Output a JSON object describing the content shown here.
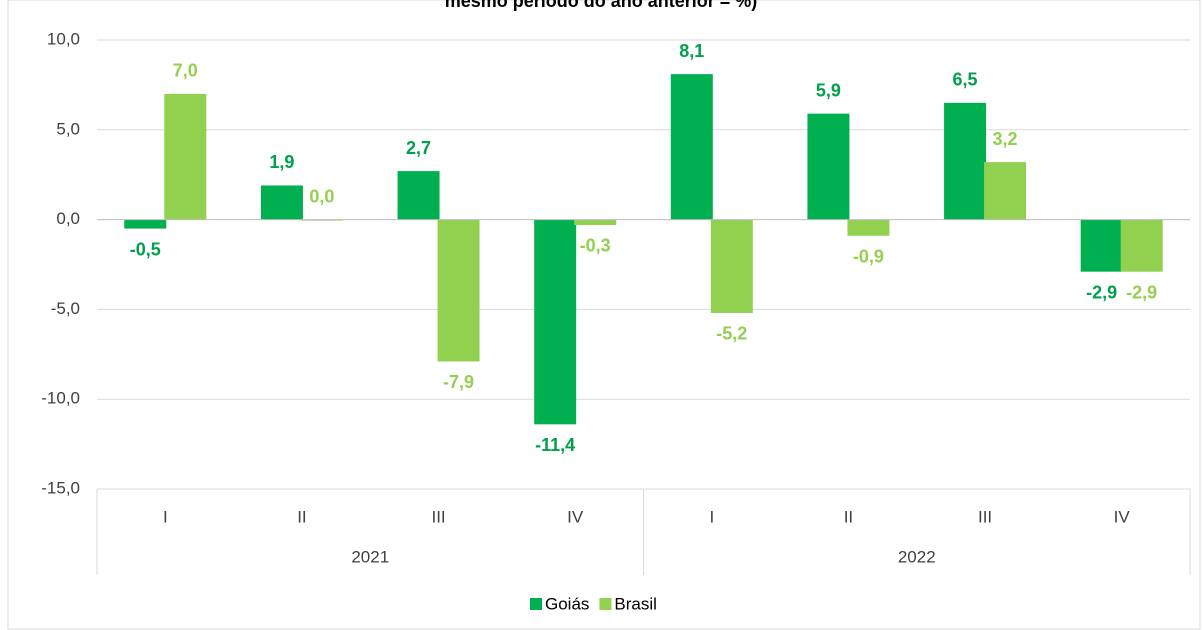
{
  "chart_data": {
    "type": "bar",
    "title": "mesmo período do ano anterior = %)",
    "categories": [
      "I",
      "II",
      "III",
      "IV",
      "I",
      "II",
      "III",
      "IV"
    ],
    "category_groups": [
      "2021",
      "2022"
    ],
    "series": [
      {
        "name": "Goiás",
        "color": "#00b050",
        "values": [
          -0.5,
          1.9,
          2.7,
          -11.4,
          8.1,
          5.9,
          6.5,
          -2.9
        ],
        "value_labels": [
          "-0,5",
          "1,9",
          "2,7",
          "-11,4",
          "8,1",
          "5,9",
          "6,5",
          "-2,9"
        ]
      },
      {
        "name": "Brasil",
        "color": "#92d050",
        "values": [
          7.0,
          0.0,
          -7.9,
          -0.3,
          -5.2,
          -0.9,
          3.2,
          -2.9
        ],
        "value_labels": [
          "7,0",
          "0,0",
          "-7,9",
          "-0,3",
          "-5,2",
          "-0,9",
          "3,2",
          "-2,9"
        ]
      }
    ],
    "ylim": [
      -15,
      10
    ],
    "yticks": [
      {
        "value": -15,
        "label": "-15,0"
      },
      {
        "value": -10,
        "label": "-10,0"
      },
      {
        "value": -5,
        "label": "-5,0"
      },
      {
        "value": 0,
        "label": "0,0"
      },
      {
        "value": 5,
        "label": "5,0"
      },
      {
        "value": 10,
        "label": "10,0"
      }
    ],
    "grid": true,
    "legend": "bottom"
  }
}
